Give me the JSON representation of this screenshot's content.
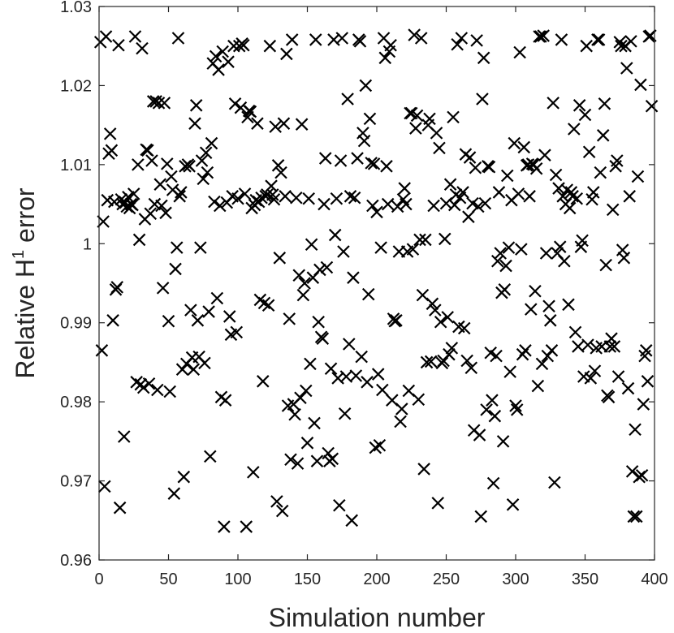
{
  "chart_data": {
    "type": "scatter",
    "title": "",
    "xlabel": "Simulation number",
    "ylabel": {
      "prefix": "Relative H",
      "superscript": "1",
      "suffix": " error"
    },
    "xlim": [
      0,
      400
    ],
    "ylim": [
      0.96,
      1.03
    ],
    "xticks": [
      0,
      50,
      100,
      150,
      200,
      250,
      300,
      350,
      400
    ],
    "xtick_labels": [
      "0",
      "50",
      "100",
      "150",
      "200",
      "250",
      "300",
      "350",
      "400"
    ],
    "yticks": [
      0.96,
      0.97,
      0.98,
      0.99,
      1.0,
      1.01,
      1.02,
      1.03
    ],
    "ytick_labels": [
      "0.96",
      "0.97",
      "0.98",
      "0.99",
      "1",
      "1.01",
      "1.02",
      "1.03"
    ],
    "grid": false,
    "marker": "x",
    "marker_color": "#000000",
    "points": [
      [
        1,
        1.0255
      ],
      [
        2,
        0.9865
      ],
      [
        3,
        1.0028
      ],
      [
        4,
        0.9693
      ],
      [
        5,
        1.0262
      ],
      [
        6,
        1.0055
      ],
      [
        7,
        1.0114
      ],
      [
        8,
        1.0139
      ],
      [
        9,
        1.0118
      ],
      [
        10,
        0.9903
      ],
      [
        11,
        1.0053
      ],
      [
        12,
        0.9942
      ],
      [
        13,
        0.9945
      ],
      [
        14,
        1.0251
      ],
      [
        15,
        0.9666
      ],
      [
        16,
        1.0056
      ],
      [
        17,
        1.005
      ],
      [
        18,
        0.9756
      ],
      [
        19,
        1.0052
      ],
      [
        20,
        1.0047
      ],
      [
        21,
        1.0059
      ],
      [
        22,
        1.0045
      ],
      [
        23,
        1.005
      ],
      [
        24,
        1.0049
      ],
      [
        25,
        1.0063
      ],
      [
        26,
        1.0262
      ],
      [
        27,
        0.9825
      ],
      [
        28,
        1.01
      ],
      [
        29,
        1.0005
      ],
      [
        30,
        0.9822
      ],
      [
        31,
        1.0247
      ],
      [
        32,
        0.9818
      ],
      [
        33,
        1.0031
      ],
      [
        34,
        1.0119
      ],
      [
        35,
        1.0118
      ],
      [
        36,
        0.9823
      ],
      [
        37,
        1.0038
      ],
      [
        38,
        1.0105
      ],
      [
        39,
        1.018
      ],
      [
        40,
        1.005
      ],
      [
        41,
        1.018
      ],
      [
        42,
        0.9815
      ],
      [
        43,
        1.0178
      ],
      [
        44,
        1.0075
      ],
      [
        45,
        1.0048
      ],
      [
        46,
        0.9944
      ],
      [
        47,
        1.0178
      ],
      [
        48,
        1.0039
      ],
      [
        49,
        1.0101
      ],
      [
        50,
        0.9902
      ],
      [
        51,
        0.9813
      ],
      [
        52,
        1.0085
      ],
      [
        53,
        1.0068
      ],
      [
        54,
        0.9684
      ],
      [
        55,
        0.9968
      ],
      [
        56,
        0.9995
      ],
      [
        57,
        1.026
      ],
      [
        58,
        1.006
      ],
      [
        59,
        1.0065
      ],
      [
        60,
        0.9841
      ],
      [
        61,
        0.9705
      ],
      [
        62,
        1.0098
      ],
      [
        63,
        0.9848
      ],
      [
        64,
        1.01
      ],
      [
        65,
        1.0098
      ],
      [
        66,
        0.9916
      ],
      [
        67,
        0.9856
      ],
      [
        68,
        0.9841
      ],
      [
        69,
        1.0152
      ],
      [
        70,
        1.0175
      ],
      [
        71,
        0.9903
      ],
      [
        72,
        0.9857
      ],
      [
        73,
        0.9995
      ],
      [
        74,
        1.0105
      ],
      [
        75,
        1.0082
      ],
      [
        76,
        0.9849
      ],
      [
        77,
        1.0115
      ],
      [
        78,
        1.009
      ],
      [
        79,
        0.9914
      ],
      [
        80,
        0.9731
      ],
      [
        81,
        1.0127
      ],
      [
        82,
        1.0228
      ],
      [
        83,
        1.0053
      ],
      [
        84,
        1.0237
      ],
      [
        85,
        0.9931
      ],
      [
        86,
        1.022
      ],
      [
        87,
        1.0048
      ],
      [
        88,
        0.9806
      ],
      [
        89,
        1.0243
      ],
      [
        90,
        0.9642
      ],
      [
        91,
        0.9802
      ],
      [
        92,
        1.0052
      ],
      [
        93,
        1.023
      ],
      [
        94,
        0.9908
      ],
      [
        95,
        0.9885
      ],
      [
        96,
        1.006
      ],
      [
        97,
        1.025
      ],
      [
        98,
        1.0177
      ],
      [
        99,
        0.9888
      ],
      [
        100,
        1.0057
      ],
      [
        101,
        1.025
      ],
      [
        102,
        1.0172
      ],
      [
        103,
        1.0253
      ],
      [
        104,
        1.0251
      ],
      [
        105,
        1.0063
      ],
      [
        106,
        0.9642
      ],
      [
        107,
        1.016
      ],
      [
        108,
        1.0168
      ],
      [
        109,
        1.0167
      ],
      [
        110,
        1.0045
      ],
      [
        111,
        0.9711
      ],
      [
        112,
        1.0049
      ],
      [
        113,
        1.0055
      ],
      [
        114,
        1.0152
      ],
      [
        115,
        1.0053
      ],
      [
        116,
        0.9929
      ],
      [
        117,
        1.0058
      ],
      [
        118,
        0.9826
      ],
      [
        119,
        0.9925
      ],
      [
        120,
        1.006
      ],
      [
        121,
        1.0062
      ],
      [
        122,
        0.9922
      ],
      [
        123,
        1.025
      ],
      [
        124,
        1.0073
      ],
      [
        125,
        1.0062
      ],
      [
        126,
        1.0056
      ],
      [
        127,
        1.0148
      ],
      [
        128,
        0.9674
      ],
      [
        129,
        1.0099
      ],
      [
        130,
        0.9982
      ],
      [
        131,
        1.009
      ],
      [
        132,
        0.9662
      ],
      [
        133,
        1.0152
      ],
      [
        134,
        1.006
      ],
      [
        135,
        1.024
      ],
      [
        136,
        0.9795
      ],
      [
        137,
        0.9905
      ],
      [
        138,
        0.9727
      ],
      [
        139,
        1.0258
      ],
      [
        140,
        0.9797
      ],
      [
        141,
        0.9784
      ],
      [
        142,
        1.0058
      ],
      [
        143,
        0.9722
      ],
      [
        144,
        0.996
      ],
      [
        145,
        0.9805
      ],
      [
        146,
        1.0151
      ],
      [
        147,
        0.9935
      ],
      [
        148,
        0.995
      ],
      [
        149,
        0.9814
      ],
      [
        150,
        0.9748
      ],
      [
        151,
        1.0057
      ],
      [
        152,
        0.9848
      ],
      [
        153,
        0.9999
      ],
      [
        154,
        0.9957
      ],
      [
        155,
        0.9773
      ],
      [
        156,
        1.0258
      ],
      [
        157,
        0.9725
      ],
      [
        158,
        0.9901
      ],
      [
        159,
        0.9967
      ],
      [
        160,
        0.9882
      ],
      [
        161,
        0.988
      ],
      [
        162,
        1.005
      ],
      [
        163,
        1.0108
      ],
      [
        164,
        0.997
      ],
      [
        165,
        0.9735
      ],
      [
        166,
        0.9725
      ],
      [
        167,
        0.9842
      ],
      [
        168,
        0.9728
      ],
      [
        169,
        1.0258
      ],
      [
        170,
        1.0011
      ],
      [
        171,
        1.0057
      ],
      [
        172,
        0.983
      ],
      [
        173,
        0.9669
      ],
      [
        174,
        1.0105
      ],
      [
        175,
        1.026
      ],
      [
        176,
        0.999
      ],
      [
        177,
        0.9785
      ],
      [
        178,
        0.9832
      ],
      [
        179,
        1.0183
      ],
      [
        180,
        0.9873
      ],
      [
        181,
        1.006
      ],
      [
        182,
        0.965
      ],
      [
        183,
        0.9957
      ],
      [
        184,
        1.0058
      ],
      [
        185,
        0.9833
      ],
      [
        186,
        1.0108
      ],
      [
        187,
        1.0258
      ],
      [
        188,
        1.0256
      ],
      [
        189,
        0.9857
      ],
      [
        190,
        1.014
      ],
      [
        191,
        1.013
      ],
      [
        192,
        1.02
      ],
      [
        193,
        0.9825
      ],
      [
        194,
        0.9936
      ],
      [
        195,
        1.0158
      ],
      [
        196,
        1.0102
      ],
      [
        197,
        1.0048
      ],
      [
        198,
        1.0101
      ],
      [
        199,
        0.9742
      ],
      [
        200,
        1.004
      ],
      [
        201,
        0.9835
      ],
      [
        202,
        0.9745
      ],
      [
        203,
        0.9995
      ],
      [
        204,
        0.9815
      ],
      [
        205,
        1.026
      ],
      [
        206,
        1.0235
      ],
      [
        207,
        1.0098
      ],
      [
        208,
        1.005
      ],
      [
        209,
        1.0243
      ],
      [
        210,
        1.0251
      ],
      [
        211,
        0.9802
      ],
      [
        212,
        0.9905
      ],
      [
        213,
        0.9902
      ],
      [
        214,
        0.9903
      ],
      [
        215,
        1.0047
      ],
      [
        216,
        0.999
      ],
      [
        217,
        0.9775
      ],
      [
        218,
        0.9791
      ],
      [
        219,
        1.0056
      ],
      [
        220,
        1.007
      ],
      [
        221,
        1.005
      ],
      [
        222,
        0.999
      ],
      [
        223,
        0.9814
      ],
      [
        224,
        1.0165
      ],
      [
        225,
        1.0165
      ],
      [
        226,
        0.9993
      ],
      [
        227,
        1.0264
      ],
      [
        228,
        1.0146
      ],
      [
        229,
        1.0162
      ],
      [
        230,
        0.9803
      ],
      [
        231,
        1.0005
      ],
      [
        232,
        1.026
      ],
      [
        233,
        0.9935
      ],
      [
        234,
        0.9715
      ],
      [
        235,
        1.0005
      ],
      [
        236,
        0.985
      ],
      [
        237,
        1.015
      ],
      [
        238,
        1.0158
      ],
      [
        239,
        0.9851
      ],
      [
        240,
        0.9924
      ],
      [
        241,
        1.0048
      ],
      [
        242,
        0.9916
      ],
      [
        243,
        1.014
      ],
      [
        244,
        0.9672
      ],
      [
        245,
        1.0121
      ],
      [
        246,
        0.9901
      ],
      [
        247,
        0.9849
      ],
      [
        248,
        0.9852
      ],
      [
        249,
        1.0006
      ],
      [
        250,
        1.0051
      ],
      [
        251,
        0.9907
      ],
      [
        252,
        0.986
      ],
      [
        253,
        1.0075
      ],
      [
        254,
        0.9868
      ],
      [
        255,
        1.016
      ],
      [
        256,
        1.0049
      ],
      [
        257,
        1.0062
      ],
      [
        258,
        1.0252
      ],
      [
        259,
        0.9895
      ],
      [
        260,
        1.0058
      ],
      [
        261,
        1.026
      ],
      [
        262,
        1.0065
      ],
      [
        263,
        0.9893
      ],
      [
        264,
        1.0113
      ],
      [
        265,
        0.9852
      ],
      [
        266,
        1.0034
      ],
      [
        267,
        1.0109
      ],
      [
        268,
        0.9843
      ],
      [
        269,
        1.0051
      ],
      [
        270,
        0.9764
      ],
      [
        271,
        1.0096
      ],
      [
        272,
        1.0257
      ],
      [
        273,
        1.0047
      ],
      [
        274,
        0.9758
      ],
      [
        275,
        0.9655
      ],
      [
        276,
        1.0183
      ],
      [
        277,
        1.0235
      ],
      [
        278,
        1.0051
      ],
      [
        279,
        0.979
      ],
      [
        280,
        1.0098
      ],
      [
        281,
        1.0097
      ],
      [
        282,
        0.9862
      ],
      [
        283,
        0.9802
      ],
      [
        284,
        0.9697
      ],
      [
        285,
        0.9782
      ],
      [
        286,
        0.9858
      ],
      [
        287,
        0.9978
      ],
      [
        288,
        1.0065
      ],
      [
        289,
        0.9988
      ],
      [
        290,
        0.9938
      ],
      [
        291,
        0.975
      ],
      [
        292,
        0.9942
      ],
      [
        293,
        0.9972
      ],
      [
        294,
        1.0086
      ],
      [
        295,
        0.9995
      ],
      [
        296,
        0.9838
      ],
      [
        297,
        1.0055
      ],
      [
        298,
        0.967
      ],
      [
        299,
        1.0127
      ],
      [
        300,
        0.9795
      ],
      [
        301,
        0.979
      ],
      [
        302,
        1.0063
      ],
      [
        303,
        1.0242
      ],
      [
        304,
        0.9993
      ],
      [
        305,
        0.986
      ],
      [
        306,
        1.0122
      ],
      [
        307,
        0.9865
      ],
      [
        308,
        1.0099
      ],
      [
        309,
        1.01
      ],
      [
        310,
        1.006
      ],
      [
        311,
        0.9917
      ],
      [
        312,
        1.0101
      ],
      [
        313,
        1.01
      ],
      [
        314,
        0.994
      ],
      [
        315,
        1.0095
      ],
      [
        316,
        0.982
      ],
      [
        317,
        1.0262
      ],
      [
        318,
        1.0262
      ],
      [
        319,
        0.9848
      ],
      [
        320,
        1.0263
      ],
      [
        321,
        1.0112
      ],
      [
        322,
        0.9988
      ],
      [
        323,
        0.9858
      ],
      [
        324,
        0.9921
      ],
      [
        325,
        0.9903
      ],
      [
        326,
        0.9865
      ],
      [
        327,
        1.0178
      ],
      [
        328,
        0.9698
      ],
      [
        329,
        1.0087
      ],
      [
        330,
        0.9988
      ],
      [
        331,
        1.007
      ],
      [
        332,
        0.9996
      ],
      [
        333,
        1.0258
      ],
      [
        334,
        1.006
      ],
      [
        335,
        0.9978
      ],
      [
        336,
        1.005
      ],
      [
        337,
        1.0068
      ],
      [
        338,
        0.9923
      ],
      [
        339,
        1.0045
      ],
      [
        340,
        1.0065
      ],
      [
        341,
        1.006
      ],
      [
        342,
        1.0145
      ],
      [
        343,
        0.9888
      ],
      [
        344,
        1.0057
      ],
      [
        345,
        0.987
      ],
      [
        346,
        1.0175
      ],
      [
        347,
        0.9996
      ],
      [
        348,
        1.0004
      ],
      [
        349,
        0.9832
      ],
      [
        350,
        1.0163
      ],
      [
        351,
        1.025
      ],
      [
        352,
        0.9872
      ],
      [
        353,
        1.0116
      ],
      [
        354,
        0.983
      ],
      [
        355,
        1.0056
      ],
      [
        356,
        1.0065
      ],
      [
        357,
        0.9839
      ],
      [
        358,
        0.9868
      ],
      [
        359,
        1.0258
      ],
      [
        360,
        1.0258
      ],
      [
        361,
        1.009
      ],
      [
        362,
        0.987
      ],
      [
        363,
        1.0137
      ],
      [
        364,
        1.0177
      ],
      [
        365,
        0.9973
      ],
      [
        366,
        0.9808
      ],
      [
        367,
        0.9806
      ],
      [
        368,
        0.987
      ],
      [
        369,
        0.988
      ],
      [
        370,
        1.0043
      ],
      [
        371,
        0.987
      ],
      [
        372,
        1.0098
      ],
      [
        373,
        1.0105
      ],
      [
        374,
        0.9832
      ],
      [
        375,
        1.0255
      ],
      [
        376,
        1.025
      ],
      [
        377,
        0.9992
      ],
      [
        378,
        0.9982
      ],
      [
        379,
        1.025
      ],
      [
        380,
        1.0222
      ],
      [
        381,
        0.9817
      ],
      [
        382,
        1.006
      ],
      [
        383,
        1.0256
      ],
      [
        384,
        0.9712
      ],
      [
        385,
        0.9655
      ],
      [
        386,
        0.9765
      ],
      [
        387,
        0.9655
      ],
      [
        388,
        1.0085
      ],
      [
        389,
        0.9705
      ],
      [
        390,
        1.0201
      ],
      [
        391,
        0.9707
      ],
      [
        392,
        0.9797
      ],
      [
        393,
        0.9858
      ],
      [
        394,
        0.9865
      ],
      [
        395,
        0.9826
      ],
      [
        396,
        1.0262
      ],
      [
        397,
        1.0263
      ],
      [
        398,
        1.0174
      ]
    ]
  }
}
